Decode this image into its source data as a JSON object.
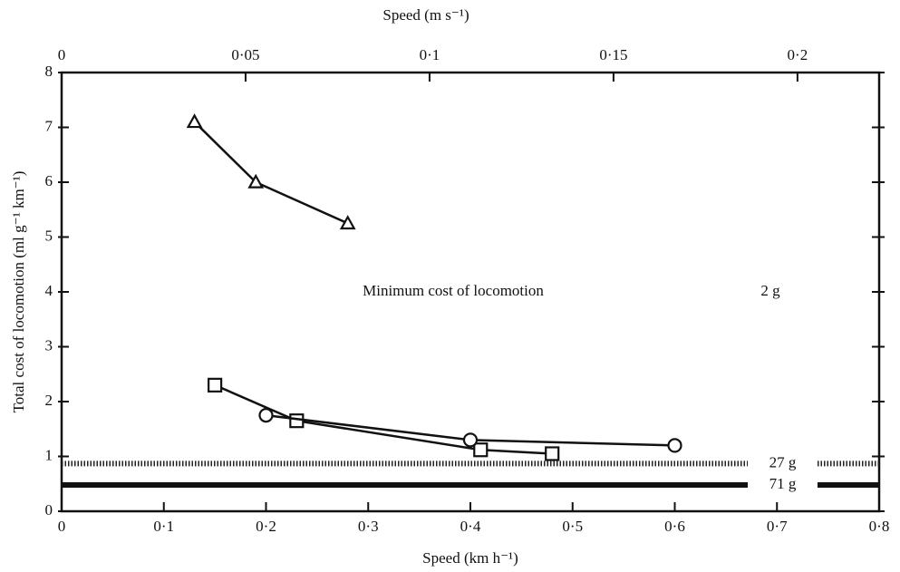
{
  "chart_data": {
    "type": "line",
    "title_top": "Speed (m s⁻¹)",
    "x_label": "Speed (km h⁻¹)",
    "y_label": "Total cost of locomotion (ml g⁻¹ km⁻¹)",
    "xlim": [
      0,
      0.8
    ],
    "xticks": [
      0,
      {
        "value": 0.1,
        "label": "0·1"
      },
      {
        "value": 0.2,
        "label": "0·2"
      },
      {
        "value": 0.3,
        "label": "0·3"
      },
      {
        "value": 0.4,
        "label": "0·4"
      },
      {
        "value": 0.5,
        "label": "0·5"
      },
      {
        "value": 0.6,
        "label": "0·6"
      },
      {
        "value": 0.7,
        "label": "0·7"
      },
      {
        "value": 0.8,
        "label": "0·8"
      }
    ],
    "x2lim": [
      0,
      0.2222
    ],
    "x2ticks": [
      0,
      {
        "value": 0.05,
        "label": "0·05"
      },
      {
        "value": 0.1,
        "label": "0·1"
      },
      {
        "value": 0.15,
        "label": "0·15"
      },
      {
        "value": 0.2,
        "label": "0·2"
      }
    ],
    "ylim": [
      0,
      8
    ],
    "yticks": [
      0,
      1,
      2,
      3,
      4,
      5,
      6,
      7,
      8
    ],
    "grid": false,
    "series": [
      {
        "marker": "triangle",
        "color": "#111",
        "x": [
          0.13,
          0.19,
          0.28
        ],
        "values": [
          7.1,
          6.0,
          5.25
        ]
      },
      {
        "marker": "square",
        "color": "#111",
        "x": [
          0.15,
          0.23,
          0.41,
          0.48
        ],
        "values": [
          2.3,
          1.65,
          1.12,
          1.05
        ]
      },
      {
        "marker": "circle",
        "color": "#111",
        "x": [
          0.2,
          0.4,
          0.6
        ],
        "values": [
          1.75,
          1.3,
          1.2
        ]
      }
    ],
    "reference_lines": [
      {
        "value": 0.87,
        "label": "27 g",
        "style": "hatched"
      },
      {
        "value": 0.48,
        "label": "71 g",
        "style": "solid"
      }
    ],
    "annotations": [
      "Minimum cost of locomotion",
      "2 g"
    ]
  }
}
